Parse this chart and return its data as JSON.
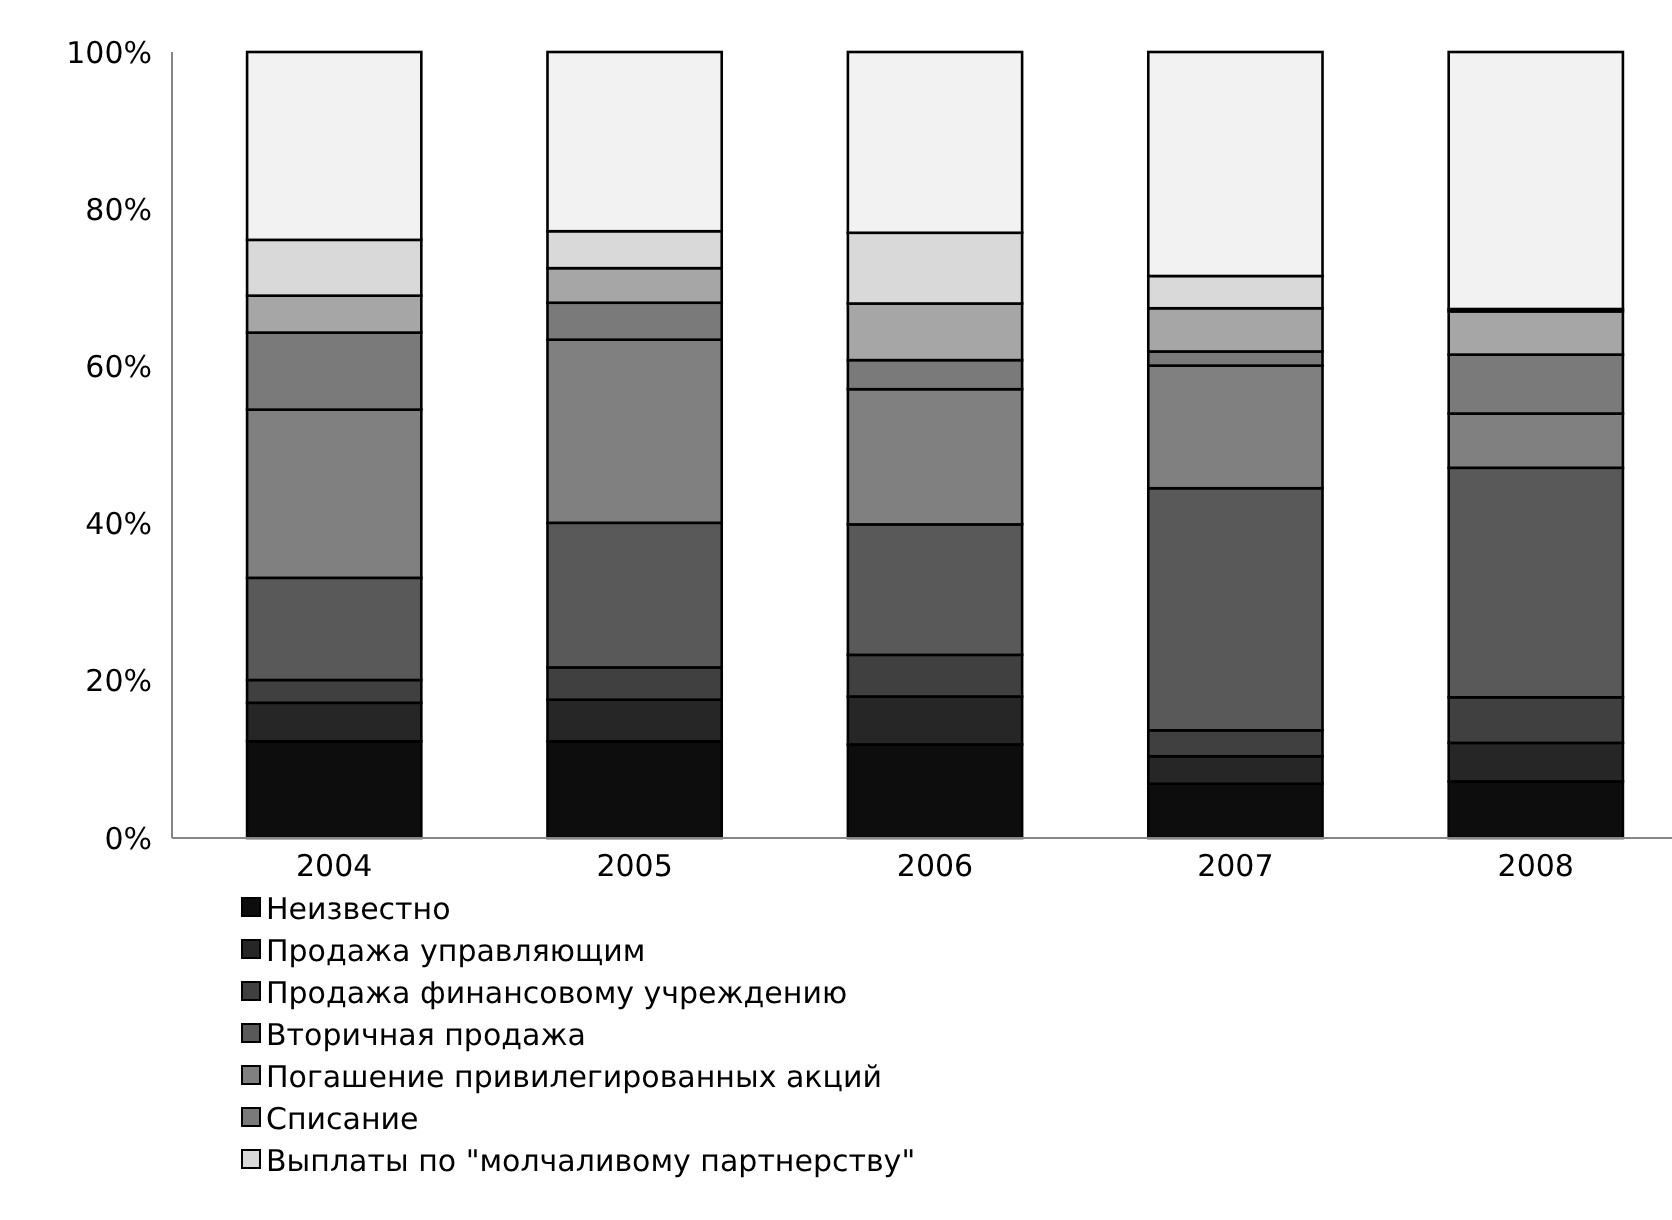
{
  "chart_data": {
    "type": "bar",
    "stacked": true,
    "categories": [
      "2004",
      "2005",
      "2006",
      "2007",
      "2008"
    ],
    "ylim": [
      0,
      100
    ],
    "yticks": [
      {
        "value": 0,
        "label": "0%"
      },
      {
        "value": 20,
        "label": "20%"
      },
      {
        "value": 40,
        "label": "40%"
      },
      {
        "value": 60,
        "label": "60%"
      },
      {
        "value": 80,
        "label": "80%"
      },
      {
        "value": 100,
        "label": "100%"
      }
    ],
    "grid": false,
    "legend": "bottom",
    "series": [
      {
        "name": "Неизвестно",
        "color": "#0d0d0d",
        "values": [
          12.3,
          12.3,
          11.9,
          6.9,
          7.2
        ]
      },
      {
        "name": "Продажа управляющим",
        "color": "#262626",
        "values": [
          4.9,
          5.3,
          6.1,
          3.5,
          4.9
        ]
      },
      {
        "name": "Продажа финансовому учреждению",
        "color": "#404040",
        "values": [
          2.9,
          4.1,
          5.3,
          3.3,
          5.8
        ]
      },
      {
        "name": "Вторичная продажа",
        "color": "#595959",
        "values": [
          13.0,
          18.4,
          16.6,
          30.8,
          29.2
        ]
      },
      {
        "name": "Погашение привилегированных акций",
        "color": "#808080",
        "values": [
          21.4,
          23.3,
          17.2,
          15.6,
          6.9
        ]
      },
      {
        "name": "Списание",
        "color": "#7a7a7a",
        "values": [
          9.8,
          4.7,
          3.7,
          1.8,
          7.5
        ]
      },
      {
        "color": "#a6a6a6",
        "values": [
          4.7,
          4.4,
          7.2,
          5.5,
          5.5
        ]
      },
      {
        "name": "Выплаты по \"молчаливому партнерству\"",
        "color": "#d9d9d9",
        "values": [
          7.1,
          4.7,
          9.0,
          4.1,
          0.3
        ]
      },
      {
        "color": "#f2f2f2",
        "values": [
          23.9,
          22.8,
          23.0,
          28.5,
          32.7
        ]
      }
    ]
  }
}
